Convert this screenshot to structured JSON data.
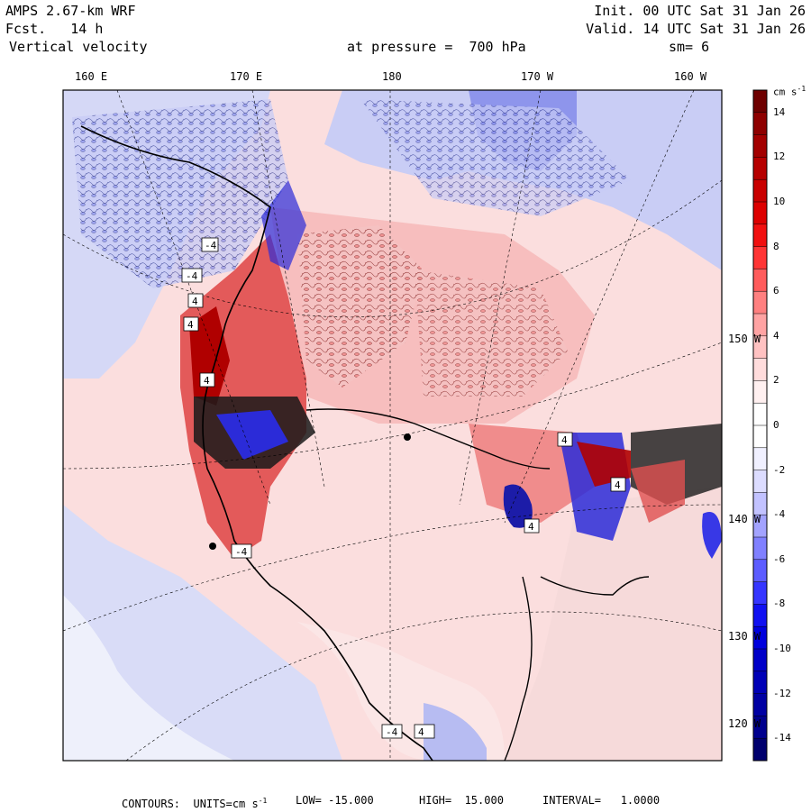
{
  "header": {
    "model": "AMPS 2.67-km WRF",
    "forecast": "Fcst.   14 h",
    "field": "Vertical velocity",
    "init": "Init. 00 UTC Sat 31 Jan 26",
    "valid": "Valid. 14 UTC Sat 31 Jan 26",
    "level": "at pressure =  700 hPa",
    "smoothing": "sm= 6"
  },
  "lon_labels": [
    "160 E",
    "170 E",
    "180",
    "170 W",
    "160 W"
  ],
  "lat_labels": [
    "150 W",
    "140 W",
    "130 W",
    "120 W"
  ],
  "colorbar": {
    "units": "cm s",
    "units_exp": "-1",
    "ticks": [
      "14",
      "12",
      "10",
      "8",
      "6",
      "4",
      "2",
      "0",
      "-2",
      "-4",
      "-6",
      "-8",
      "-10",
      "-12",
      "-14"
    ],
    "colors": [
      "#6e0000",
      "#8e0000",
      "#a30000",
      "#b60000",
      "#c90000",
      "#dd0000",
      "#f11010",
      "#ff3535",
      "#ff5c5c",
      "#ff8080",
      "#ffa3a3",
      "#ffc2c2",
      "#ffdcdc",
      "#fff0f0",
      "#ffffff",
      "#ffffff",
      "#f0f0ff",
      "#dcdcff",
      "#c2c2ff",
      "#a3a3ff",
      "#8080ff",
      "#5c5cff",
      "#3535ff",
      "#1010f1",
      "#0000dd",
      "#0000c9",
      "#0000b6",
      "#0000a3",
      "#00008e",
      "#00006e"
    ]
  },
  "footer": {
    "contours": "CONTOURS:  UNITS=cm s",
    "units_exp": "-1",
    "low": "LOW= -15.000",
    "high": "HIGH=  15.000",
    "interval": "INTERVAL=   1.0000"
  },
  "map_labels": [
    "-4",
    "-4",
    "4",
    "4",
    "4",
    "-4",
    "-4",
    "4",
    "4",
    "4",
    "4"
  ],
  "palette": {
    "pos": "#f4b4b4",
    "pos_light": "#fde3e3",
    "neg": "#c8ccf5",
    "neg_dark": "#2a2ad8",
    "land": "#ffffff"
  }
}
